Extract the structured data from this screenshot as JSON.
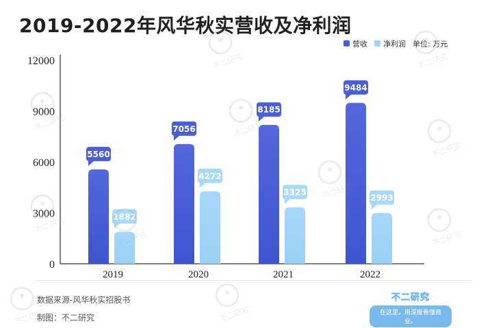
{
  "title": "2019-2022年风华秋实营收及净利润",
  "legend": {
    "unit_label": "单位: 万元"
  },
  "footer": {
    "source": "数据来源-风华秋实招股书",
    "made_by": "制图：不二研究"
  },
  "brand": {
    "name": "不二研究",
    "tagline": "在这里，用深度看懂商业。"
  },
  "watermark_text": "不二研究",
  "colors": {
    "revenue": "#4a5fd6",
    "revenue_light": "#6f82ea",
    "profit": "#9fd3f7",
    "profit_light": "#bfe3fb",
    "axis": "#333333"
  },
  "chart_data": {
    "type": "bar",
    "title": "2019-2022年风华秋实营收及净利润",
    "categories": [
      "2019",
      "2020",
      "2021",
      "2022"
    ],
    "series": [
      {
        "name": "营收",
        "values": [
          5560,
          7056,
          8185,
          9484
        ]
      },
      {
        "name": "净利润",
        "values": [
          1882,
          4272,
          3325,
          2993
        ]
      }
    ],
    "yticks": [
      "0",
      "3000",
      "6000",
      "9000",
      "12000"
    ],
    "ylim": [
      0,
      12000
    ],
    "xlabel": "",
    "ylabel": "",
    "grid": false,
    "legend_position": "top-right"
  }
}
